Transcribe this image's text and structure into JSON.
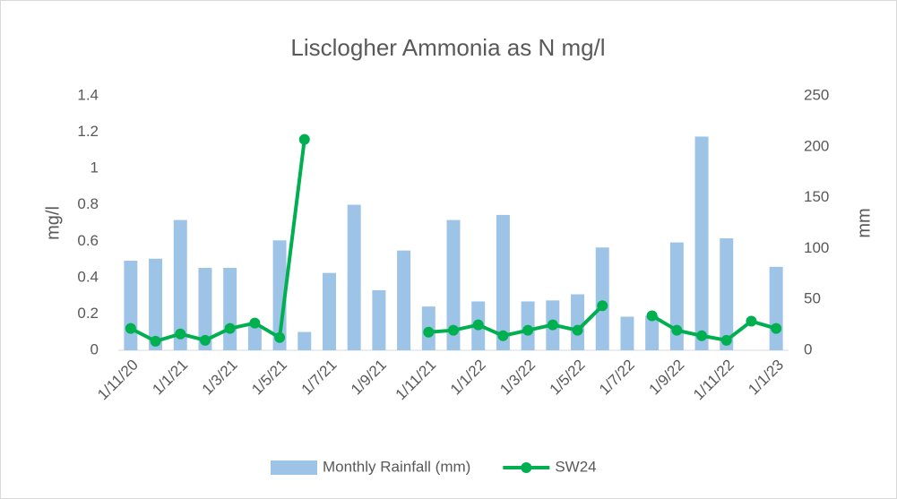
{
  "chart_data": {
    "type": "bar_line",
    "title": "Lisclogher Ammonia as N mg/l",
    "ylabel": "mg/l",
    "y2label": "mm",
    "categories": [
      "1/11/20",
      null,
      "1/1/21",
      null,
      "1/3/21",
      null,
      "1/5/21",
      null,
      "1/7/21",
      null,
      "1/9/21",
      null,
      "1/11/21",
      null,
      "1/1/22",
      null,
      "1/3/22",
      null,
      "1/5/22",
      null,
      "1/7/22",
      null,
      "1/9/22",
      null,
      "1/11/22",
      null,
      "1/1/23"
    ],
    "ylim": [
      0,
      1.4
    ],
    "yticks": [
      0,
      0.2,
      0.4,
      0.6,
      0.8,
      1,
      1.2,
      1.4
    ],
    "y2lim": [
      0,
      250
    ],
    "y2ticks": [
      0,
      50,
      100,
      150,
      200,
      250
    ],
    "legend": "bottom",
    "series": [
      {
        "name": "Monthly Rainfall (mm)",
        "type": "bar",
        "axis": "y2",
        "color": "#9dc3e6",
        "values": [
          88,
          90,
          128,
          81,
          81,
          25,
          108,
          18,
          76,
          143,
          59,
          98,
          43,
          128,
          48,
          133,
          48,
          49,
          55,
          101,
          33,
          34,
          106,
          210,
          110,
          null,
          82
        ]
      },
      {
        "name": "SW24",
        "type": "line",
        "color": "#00b050",
        "values": [
          0.12,
          0.05,
          0.09,
          0.055,
          0.12,
          0.15,
          0.07,
          1.16,
          null,
          null,
          null,
          null,
          0.1,
          0.11,
          0.14,
          0.08,
          0.11,
          0.14,
          0.11,
          0.245,
          null,
          0.19,
          0.11,
          0.08,
          0.055,
          0.16,
          0.12
        ]
      }
    ]
  }
}
